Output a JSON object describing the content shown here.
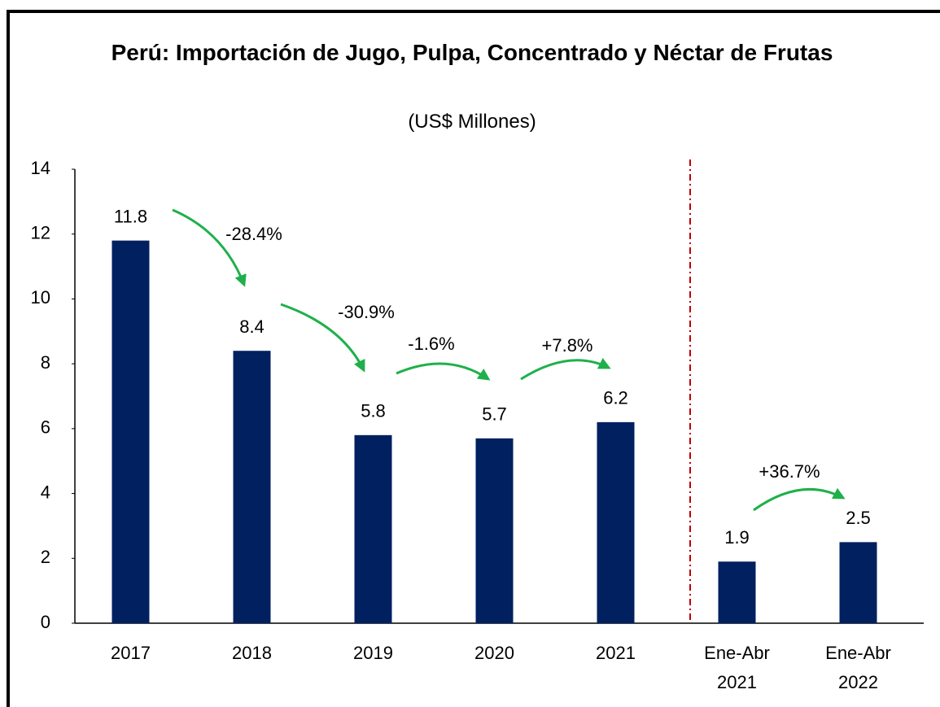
{
  "chart_data": {
    "type": "bar",
    "title": "Perú: Importación de Jugo, Pulpa, Concentrado y Néctar de Frutas",
    "subtitle": "(US$ Millones)",
    "categories": [
      "2017",
      "2018",
      "2019",
      "2020",
      "2021",
      "Ene-Abr 2021",
      "Ene-Abr 2022"
    ],
    "values": [
      11.8,
      8.4,
      5.8,
      5.7,
      6.2,
      1.9,
      2.5
    ],
    "color": "#002060",
    "ylim": [
      0,
      14
    ],
    "yticks": [
      0,
      2,
      4,
      6,
      8,
      10,
      12,
      14
    ],
    "grid": false,
    "annotations": [
      "-28.4%",
      "-30.9%",
      "-1.6%",
      "+7.8%",
      "+36.7%"
    ]
  }
}
